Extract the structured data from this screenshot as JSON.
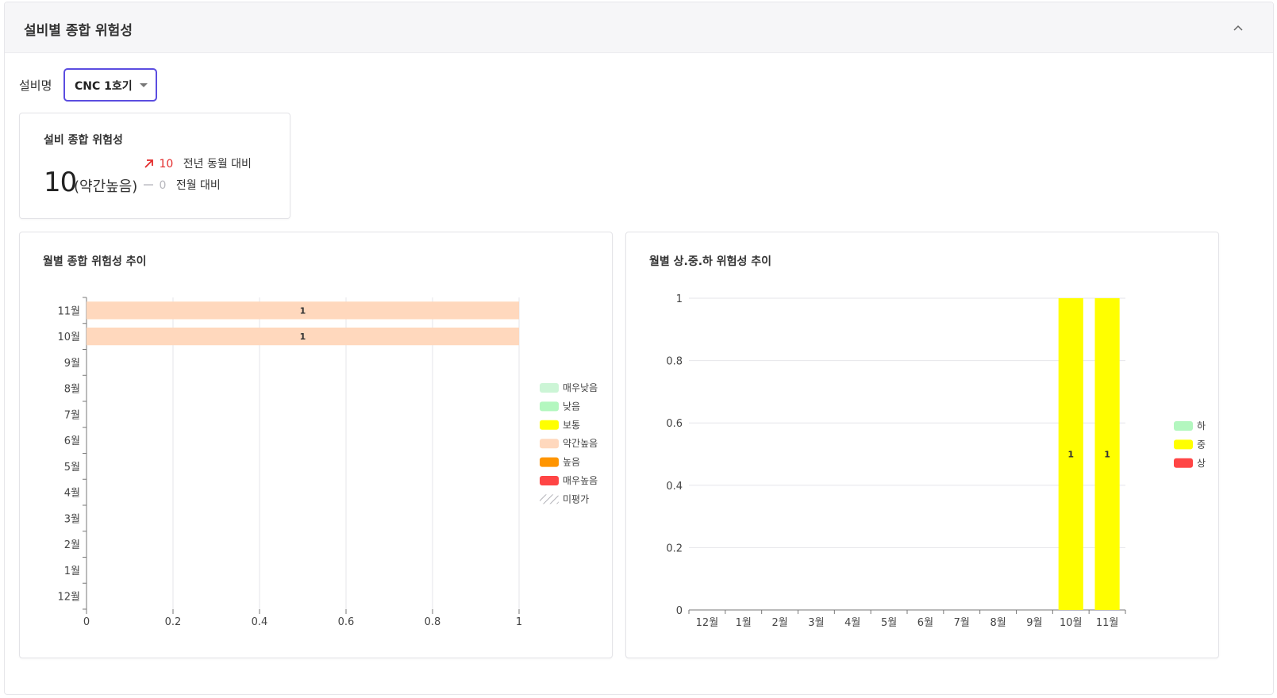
{
  "panel": {
    "title": "설비별 종합 위험성"
  },
  "device": {
    "label": "설비명",
    "selected": "CNC 1호기"
  },
  "summary": {
    "title": "설비 종합 위험성",
    "value": "10",
    "level": "(약간높음)",
    "yoy": {
      "delta": "10",
      "label": "전년 동월 대비",
      "trend": "up"
    },
    "mom": {
      "delta": "0",
      "label": "전월 대비",
      "trend": "flat"
    }
  },
  "colors": {
    "매우낮음": "#ccf5d6",
    "낮음": "#b3f7bf",
    "보통": "#ffff00",
    "약간높음": "#ffd8bd",
    "높음": "#ff9500",
    "매우높음": "#ff4545",
    "하": "#b3f7bf",
    "중": "#ffff00",
    "상": "#ff4545"
  },
  "charts": {
    "left": {
      "title": "월별 종합 위험성 추이",
      "chart_data": {
        "type": "bar",
        "orientation": "horizontal",
        "stacked": true,
        "categories": [
          "12월",
          "1월",
          "2월",
          "3월",
          "4월",
          "5월",
          "6월",
          "7월",
          "8월",
          "9월",
          "10월",
          "11월"
        ],
        "series": [
          {
            "name": "매우낮음",
            "values": [
              0,
              0,
              0,
              0,
              0,
              0,
              0,
              0,
              0,
              0,
              0,
              0
            ]
          },
          {
            "name": "낮음",
            "values": [
              0,
              0,
              0,
              0,
              0,
              0,
              0,
              0,
              0,
              0,
              0,
              0
            ]
          },
          {
            "name": "보통",
            "values": [
              0,
              0,
              0,
              0,
              0,
              0,
              0,
              0,
              0,
              0,
              0,
              0
            ]
          },
          {
            "name": "약간높음",
            "values": [
              0,
              0,
              0,
              0,
              0,
              0,
              0,
              0,
              0,
              0,
              1,
              1
            ]
          },
          {
            "name": "높음",
            "values": [
              0,
              0,
              0,
              0,
              0,
              0,
              0,
              0,
              0,
              0,
              0,
              0
            ]
          },
          {
            "name": "매우높음",
            "values": [
              0,
              0,
              0,
              0,
              0,
              0,
              0,
              0,
              0,
              0,
              0,
              0
            ]
          },
          {
            "name": "미평가",
            "values": [
              0,
              0,
              0,
              0,
              0,
              0,
              0,
              0,
              0,
              0,
              0,
              0
            ]
          }
        ],
        "xlim": [
          0,
          1
        ],
        "xticks": [
          "0",
          "0.2",
          "0.4",
          "0.6",
          "0.8",
          "1"
        ],
        "grid": "vertical",
        "legend": "right",
        "legend_items": [
          "매우낮음",
          "낮음",
          "보통",
          "약간높음",
          "높음",
          "매우높음",
          "미평가"
        ]
      }
    },
    "right": {
      "title": "월별 상.중.하 위험성 추이",
      "chart_data": {
        "type": "bar",
        "orientation": "vertical",
        "stacked": true,
        "categories": [
          "12월",
          "1월",
          "2월",
          "3월",
          "4월",
          "5월",
          "6월",
          "7월",
          "8월",
          "9월",
          "10월",
          "11월"
        ],
        "series": [
          {
            "name": "하",
            "values": [
              0,
              0,
              0,
              0,
              0,
              0,
              0,
              0,
              0,
              0,
              0,
              0
            ]
          },
          {
            "name": "중",
            "values": [
              0,
              0,
              0,
              0,
              0,
              0,
              0,
              0,
              0,
              0,
              1,
              1
            ]
          },
          {
            "name": "상",
            "values": [
              0,
              0,
              0,
              0,
              0,
              0,
              0,
              0,
              0,
              0,
              0,
              0
            ]
          }
        ],
        "ylim": [
          0,
          1
        ],
        "yticks": [
          "0",
          "0.2",
          "0.4",
          "0.6",
          "0.8",
          "1"
        ],
        "grid": "horizontal",
        "legend": "right",
        "legend_items": [
          "하",
          "중",
          "상"
        ]
      }
    }
  }
}
